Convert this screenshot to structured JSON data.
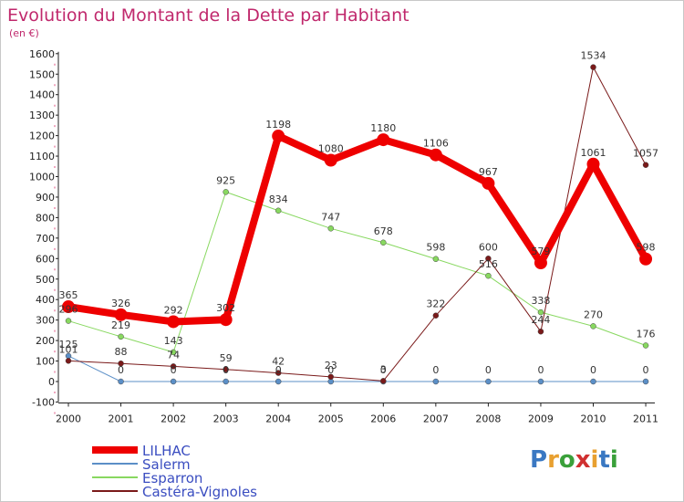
{
  "chart": {
    "title": "Evolution du Montant de la Dette par Habitant",
    "unit": "(en €)"
  },
  "logo": {
    "text": "Proxiti",
    "colors": [
      "#3a78c2",
      "#e8a030",
      "#3aa03a",
      "#d03030",
      "#e8a030",
      "#3a78c2",
      "#3aa03a"
    ]
  },
  "chart_data": {
    "type": "line",
    "title": "Evolution du Montant de la Dette par Habitant",
    "ylabel": "(en €)",
    "xlabel": "",
    "x": [
      "2000",
      "2001",
      "2002",
      "2003",
      "2004",
      "2005",
      "2006",
      "2007",
      "2008",
      "2009",
      "2010",
      "2011"
    ],
    "ylim": [
      -100,
      1600
    ],
    "yticks": [
      -100,
      0,
      100,
      200,
      300,
      400,
      500,
      600,
      700,
      800,
      900,
      1000,
      1100,
      1200,
      1300,
      1400,
      1500,
      1600
    ],
    "grid": false,
    "legend": "bottom-left",
    "series": [
      {
        "name": "LILHAC",
        "color": "#ee0000",
        "values": [
          365,
          326,
          292,
          302,
          1198,
          1080,
          1180,
          1106,
          967,
          579,
          1061,
          598
        ]
      },
      {
        "name": "Salerm",
        "color": "#5b8fc7",
        "values": [
          125,
          0,
          0,
          0,
          0,
          0,
          0,
          0,
          0,
          0,
          0,
          0
        ]
      },
      {
        "name": "Esparron",
        "color": "#88d860",
        "values": [
          296,
          219,
          143,
          925,
          834,
          747,
          678,
          598,
          516,
          338,
          270,
          176
        ]
      },
      {
        "name": "Castéra-Vignoles",
        "color": "#7a1a1a",
        "values": [
          101,
          88,
          74,
          59,
          42,
          23,
          3,
          322,
          600,
          244,
          1534,
          1057
        ]
      }
    ]
  }
}
